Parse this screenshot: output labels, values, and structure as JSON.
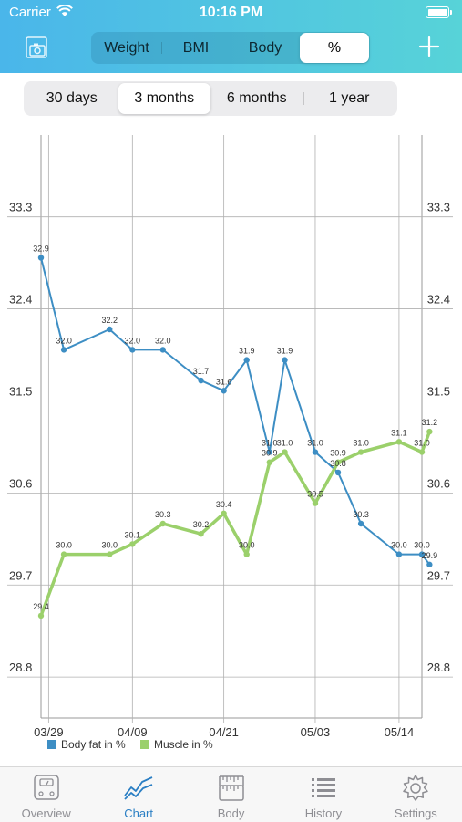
{
  "status_bar": {
    "carrier": "Carrier",
    "time": "10:16 PM"
  },
  "header": {
    "segments": [
      "Weight",
      "BMI",
      "Body",
      "%"
    ],
    "active_segment": 3
  },
  "ranges": {
    "items": [
      "30 days",
      "3 months",
      "6 months",
      "1 year"
    ],
    "active": 1
  },
  "tab_bar": {
    "items": [
      {
        "label": "Overview",
        "icon": "scale-icon"
      },
      {
        "label": "Chart",
        "icon": "chart-line-icon"
      },
      {
        "label": "Body",
        "icon": "measuring-tape-icon"
      },
      {
        "label": "History",
        "icon": "list-icon"
      },
      {
        "label": "Settings",
        "icon": "gear-icon"
      }
    ],
    "active": 1
  },
  "chart_data": {
    "type": "line",
    "title": "",
    "xlabel": "",
    "ylabel": "",
    "ylim": [
      28.4,
      34.1
    ],
    "yticks": [
      28.8,
      29.7,
      30.6,
      31.5,
      32.4,
      33.3
    ],
    "ytick_labels": [
      "28.8",
      "29.7",
      "30.6",
      "31.5",
      "32.4",
      "33.3"
    ],
    "xlim": [
      "2024-03-28",
      "2024-05-17"
    ],
    "xticks": [
      "2024-03-29",
      "2024-04-09",
      "2024-04-21",
      "2024-05-03",
      "2024-05-14"
    ],
    "xtick_labels": [
      "03/29",
      "04/09",
      "04/21",
      "05/03",
      "05/14"
    ],
    "legend_position": "bottom-left",
    "grid": true,
    "series": [
      {
        "name": "Body fat in %",
        "color": "#3d8ec4",
        "points": [
          {
            "date": "2024-03-28",
            "value": 32.9,
            "label": "32.9"
          },
          {
            "date": "2024-03-31",
            "value": 32.0,
            "label": "32.0"
          },
          {
            "date": "2024-04-06",
            "value": 32.2,
            "label": "32.2"
          },
          {
            "date": "2024-04-09",
            "value": 32.0,
            "label": "32.0"
          },
          {
            "date": "2024-04-13",
            "value": 32.0,
            "label": "32.0"
          },
          {
            "date": "2024-04-18",
            "value": 31.7,
            "label": "31.7"
          },
          {
            "date": "2024-04-21",
            "value": 31.6,
            "label": "31.6"
          },
          {
            "date": "2024-04-24",
            "value": 31.9,
            "label": "31.9"
          },
          {
            "date": "2024-04-27",
            "value": 31.0,
            "label": "31.0"
          },
          {
            "date": "2024-04-29",
            "value": 31.9,
            "label": "31.9"
          },
          {
            "date": "2024-05-03",
            "value": 31.0,
            "label": "31.0"
          },
          {
            "date": "2024-05-06",
            "value": 30.8,
            "label": "30.8"
          },
          {
            "date": "2024-05-09",
            "value": 30.3,
            "label": "30.3"
          },
          {
            "date": "2024-05-14",
            "value": 30.0,
            "label": "30.0"
          },
          {
            "date": "2024-05-17",
            "value": 30.0,
            "label": "30.0"
          },
          {
            "date": "2024-05-18",
            "value": 29.9,
            "label": "29.9"
          }
        ]
      },
      {
        "name": "Muscle in %",
        "color": "#9bd06b",
        "points": [
          {
            "date": "2024-03-28",
            "value": 29.4,
            "label": "29.4"
          },
          {
            "date": "2024-03-31",
            "value": 30.0,
            "label": "30.0"
          },
          {
            "date": "2024-04-06",
            "value": 30.0,
            "label": "30.0"
          },
          {
            "date": "2024-04-09",
            "value": 30.1,
            "label": "30.1"
          },
          {
            "date": "2024-04-13",
            "value": 30.3,
            "label": "30.3"
          },
          {
            "date": "2024-04-18",
            "value": 30.2,
            "label": "30.2"
          },
          {
            "date": "2024-04-21",
            "value": 30.4,
            "label": "30.4"
          },
          {
            "date": "2024-04-24",
            "value": 30.0,
            "label": "30.0"
          },
          {
            "date": "2024-04-27",
            "value": 30.9,
            "label": "30.9"
          },
          {
            "date": "2024-04-29",
            "value": 31.0,
            "label": "31.0"
          },
          {
            "date": "2024-05-03",
            "value": 30.5,
            "label": "30.5"
          },
          {
            "date": "2024-05-06",
            "value": 30.9,
            "label": "30.9"
          },
          {
            "date": "2024-05-09",
            "value": 31.0,
            "label": "31.0"
          },
          {
            "date": "2024-05-14",
            "value": 31.1,
            "label": "31.1"
          },
          {
            "date": "2024-05-17",
            "value": 31.0,
            "label": "31.0"
          },
          {
            "date": "2024-05-18",
            "value": 31.2,
            "label": "31.2"
          }
        ]
      }
    ]
  }
}
